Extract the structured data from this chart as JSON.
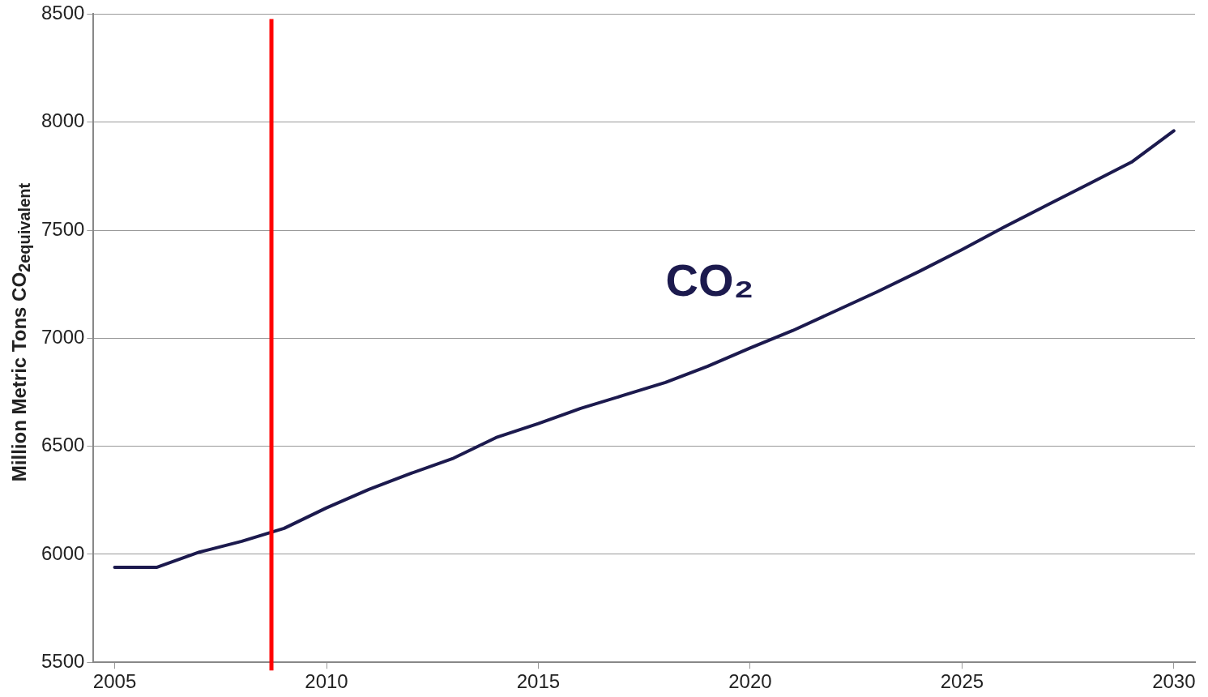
{
  "chart_data": {
    "type": "line",
    "ylabel": "Million Metric Tons CO$_{2equivalent}$",
    "x": [
      2005,
      2006,
      2007,
      2008,
      2009,
      2010,
      2011,
      2012,
      2013,
      2014,
      2015,
      2016,
      2017,
      2018,
      2019,
      2020,
      2021,
      2022,
      2023,
      2024,
      2025,
      2026,
      2027,
      2028,
      2029,
      2030
    ],
    "series": [
      {
        "name": "CO₂",
        "color": "#1c1a4e",
        "values": [
          5940,
          5940,
          6010,
          6060,
          6120,
          6215,
          6300,
          6375,
          6445,
          6540,
          6605,
          6675,
          6735,
          6795,
          6870,
          6955,
          7035,
          7125,
          7215,
          7310,
          7410,
          7515,
          7615,
          7715,
          7815,
          7960
        ]
      }
    ],
    "xlim": [
      2004.5,
      2030.5
    ],
    "xticks": [
      2005,
      2010,
      2015,
      2020,
      2025,
      2030
    ],
    "ylim": [
      5500,
      8500
    ],
    "yticks": [
      5500,
      6000,
      6500,
      7000,
      7500,
      8000,
      8500
    ],
    "grid": "y",
    "legend": false,
    "marker": "none",
    "line_style": "solid",
    "ref_lines": [
      {
        "axis": "x",
        "value": 2008.7,
        "color": "#ff0000"
      }
    ]
  }
}
